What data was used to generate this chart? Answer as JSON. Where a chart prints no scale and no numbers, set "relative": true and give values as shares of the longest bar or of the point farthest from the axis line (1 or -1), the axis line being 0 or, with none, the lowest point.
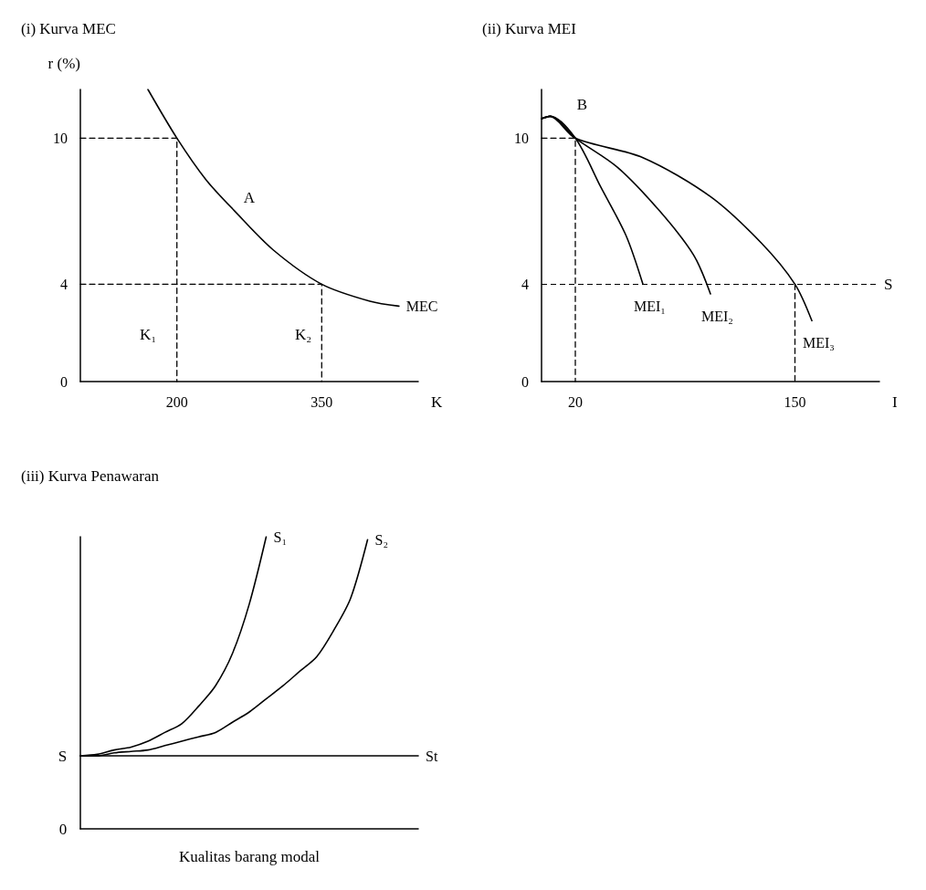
{
  "chart_data": [
    {
      "type": "line",
      "title": "(i) Kurva MEC",
      "ylabel": "r (%)",
      "xlabel": "K",
      "xlim": [
        100,
        450
      ],
      "xticks": [
        200,
        350
      ],
      "ylim": [
        0,
        12
      ],
      "yticks": [
        0,
        4,
        10
      ],
      "marker": "none",
      "grid": false,
      "legend": false,
      "series": [
        {
          "name": "MEC",
          "color": "#000000",
          "line_style": "solid",
          "x": [
            170,
            200,
            230,
            260,
            300,
            350,
            400,
            430
          ],
          "values": [
            12,
            10,
            8.3,
            7,
            5.4,
            4,
            3.3,
            3.1
          ]
        },
        {
          "color": "#000000",
          "line_style": "dashed",
          "x": [
            100,
            200,
            200
          ],
          "values": [
            10,
            10,
            0
          ]
        },
        {
          "color": "#000000",
          "line_style": "dashed",
          "x": [
            100,
            350,
            350
          ],
          "values": [
            4,
            4,
            0
          ]
        }
      ],
      "annotations": [
        "A",
        "K₁",
        "K₂"
      ]
    },
    {
      "type": "line",
      "title": "(ii) Kurva MEI",
      "xlabel": "I",
      "xlim": [
        0,
        200
      ],
      "xticks": [
        20,
        150
      ],
      "ylim": [
        0,
        12
      ],
      "yticks": [
        0,
        4,
        10
      ],
      "marker": "none",
      "grid": false,
      "legend": false,
      "series": [
        {
          "name": "MEI₁",
          "color": "#000000",
          "line_style": "solid",
          "x": [
            0,
            5,
            20,
            35,
            50,
            60
          ],
          "values": [
            10.8,
            10.9,
            10,
            8,
            6,
            4
          ]
        },
        {
          "name": "MEI₂",
          "color": "#000000",
          "line_style": "solid",
          "x": [
            0,
            5,
            20,
            45,
            70,
            90,
            100
          ],
          "values": [
            10.8,
            10.9,
            10,
            8.8,
            7,
            5.2,
            3.6
          ]
        },
        {
          "name": "MEI₃",
          "color": "#000000",
          "line_style": "solid",
          "x": [
            0,
            5,
            20,
            60,
            100,
            130,
            150,
            160
          ],
          "values": [
            10.8,
            10.9,
            10,
            9.2,
            7.6,
            5.7,
            4,
            2.5
          ]
        },
        {
          "color": "#000000",
          "line_style": "dashed",
          "x": [
            0,
            20,
            20
          ],
          "values": [
            10,
            10,
            0
          ]
        },
        {
          "color": "#000000",
          "line_style": "dashed",
          "x": [
            150,
            150
          ],
          "values": [
            4,
            0
          ]
        }
      ],
      "ref_lines": [
        {
          "axis": "y",
          "value": 4,
          "label": "S",
          "color": "#000000",
          "line_style": "dashed"
        }
      ],
      "annotations": [
        "B"
      ]
    },
    {
      "type": "line",
      "title": "(iii) Kurva Penawaran",
      "xlabel": "Kualitas barang modal",
      "relative": true,
      "marker": "none",
      "grid": false,
      "legend": false,
      "categories": [
        null,
        null,
        null,
        null,
        null,
        null,
        null,
        null,
        null,
        null,
        null,
        null,
        null,
        null,
        null,
        null,
        null,
        null,
        null,
        null,
        null
      ],
      "series": [
        {
          "name": "S₁",
          "color": "#000000",
          "line_style": "solid",
          "values": [
            0.25,
            0.255,
            0.27,
            0.28,
            0.3,
            0.33,
            0.36,
            0.42,
            0.49,
            0.6,
            0.77,
            1.0,
            null,
            null,
            null,
            null,
            null,
            null,
            null,
            null,
            null
          ]
        },
        {
          "name": "S₂",
          "color": "#000000",
          "line_style": "solid",
          "values": [
            0.25,
            0.25,
            0.26,
            0.265,
            0.27,
            0.285,
            0.3,
            0.315,
            0.33,
            0.365,
            0.4,
            0.445,
            0.49,
            0.54,
            0.59,
            0.68,
            0.79,
            0.99,
            null,
            null,
            null
          ]
        },
        {
          "name": "St",
          "color": "#000000",
          "line_style": "solid",
          "values": [
            0.25,
            0.25,
            0.25,
            0.25,
            0.25,
            0.25,
            0.25,
            0.25,
            0.25,
            0.25,
            0.25,
            0.25,
            0.25,
            0.25,
            0.25,
            0.25,
            0.25,
            0.25,
            0.25,
            0.25,
            0.25
          ]
        }
      ],
      "annotations": [
        "S",
        "0"
      ]
    }
  ]
}
